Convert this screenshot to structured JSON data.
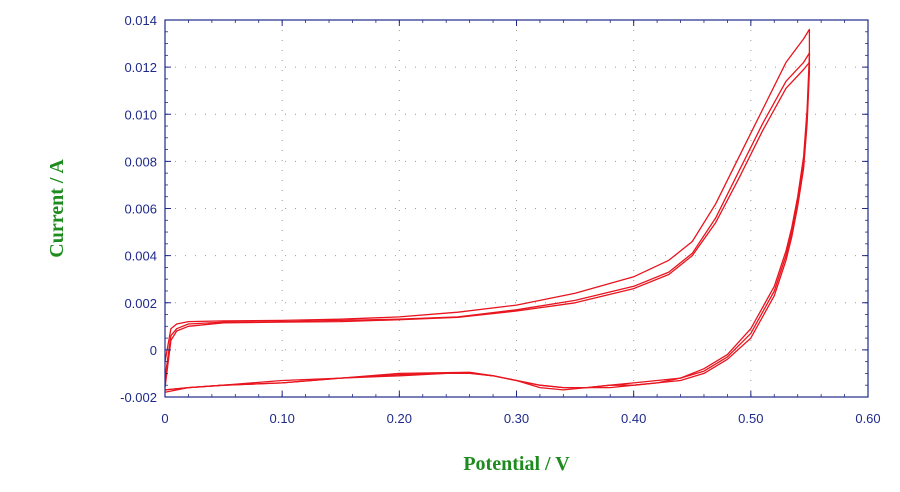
{
  "chart_data": {
    "type": "line",
    "title": "",
    "xlabel": "Potential / V",
    "ylabel": "Current / A",
    "xlim": [
      0,
      0.6
    ],
    "ylim": [
      -0.002,
      0.014
    ],
    "x_ticks": [
      0,
      0.1,
      0.2,
      0.3,
      0.4,
      0.5,
      0.6
    ],
    "x_tick_labels": [
      "0",
      "0.10",
      "0.20",
      "0.30",
      "0.40",
      "0.50",
      "0.60"
    ],
    "y_ticks": [
      -0.002,
      0,
      0.002,
      0.004,
      0.006,
      0.008,
      0.01,
      0.012,
      0.014
    ],
    "y_tick_labels": [
      "-0.002",
      "0",
      "0.002",
      "0.004",
      "0.006",
      "0.008",
      "0.010",
      "0.012",
      "0.014"
    ],
    "grid": true,
    "line_color": "#e8141e",
    "axis_color": "#1f2a8a",
    "grid_color": "#9a9a9a",
    "label_color": "#1e8b1e",
    "series": [
      {
        "x": [
          0.0,
          0.005,
          0.01,
          0.02,
          0.05,
          0.1,
          0.15,
          0.2,
          0.25,
          0.3,
          0.35,
          0.4,
          0.43,
          0.45,
          0.47,
          0.49,
          0.51,
          0.53,
          0.545,
          0.55,
          0.55,
          0.548,
          0.545,
          0.54,
          0.535,
          0.53,
          0.52,
          0.5,
          0.48,
          0.46,
          0.44,
          0.42,
          0.4,
          0.38,
          0.36,
          0.34,
          0.32,
          0.3,
          0.28,
          0.26,
          0.24,
          0.2,
          0.15,
          0.1,
          0.05,
          0.02,
          0.0
        ],
        "y": [
          -0.0005,
          0.0009,
          0.0011,
          0.0012,
          0.00123,
          0.00125,
          0.0013,
          0.0014,
          0.0016,
          0.0019,
          0.0024,
          0.0031,
          0.0038,
          0.0046,
          0.0062,
          0.0082,
          0.0102,
          0.0122,
          0.0132,
          0.0136,
          0.0125,
          0.0102,
          0.0082,
          0.0065,
          0.0052,
          0.0042,
          0.0027,
          0.0009,
          -0.0002,
          -0.0008,
          -0.0012,
          -0.0013,
          -0.0014,
          -0.0015,
          -0.0016,
          -0.0016,
          -0.0015,
          -0.0013,
          -0.0011,
          -0.00095,
          -0.00097,
          -0.001,
          -0.0012,
          -0.0013,
          -0.0015,
          -0.0016,
          -0.0017
        ]
      },
      {
        "x": [
          0.0,
          0.005,
          0.01,
          0.02,
          0.05,
          0.1,
          0.15,
          0.2,
          0.25,
          0.3,
          0.35,
          0.4,
          0.43,
          0.45,
          0.47,
          0.49,
          0.51,
          0.53,
          0.545,
          0.55,
          0.55,
          0.548,
          0.545,
          0.54,
          0.535,
          0.53,
          0.52,
          0.5,
          0.48,
          0.46,
          0.44,
          0.42,
          0.4,
          0.38,
          0.36,
          0.34,
          0.32,
          0.3,
          0.28,
          0.26,
          0.24,
          0.2,
          0.15,
          0.1,
          0.05,
          0.02,
          0.0
        ],
        "y": [
          -0.0012,
          0.0006,
          0.0009,
          0.0011,
          0.00118,
          0.0012,
          0.00125,
          0.0013,
          0.0014,
          0.0017,
          0.0021,
          0.0027,
          0.0033,
          0.0041,
          0.0056,
          0.0076,
          0.0096,
          0.0114,
          0.0122,
          0.0126,
          0.0121,
          0.0099,
          0.0079,
          0.0063,
          0.005,
          0.004,
          0.0025,
          0.0007,
          -0.0003,
          -0.0009,
          -0.0012,
          -0.0014,
          -0.0015,
          -0.0015,
          -0.0016,
          -0.0016,
          -0.0015,
          -0.0013,
          -0.0011,
          -0.00098,
          -0.001,
          -0.00105,
          -0.0012,
          -0.0014,
          -0.0015,
          -0.0016,
          -0.0017
        ]
      },
      {
        "x": [
          0.0,
          0.005,
          0.01,
          0.02,
          0.05,
          0.1,
          0.15,
          0.2,
          0.25,
          0.3,
          0.35,
          0.4,
          0.43,
          0.45,
          0.47,
          0.49,
          0.51,
          0.53,
          0.545,
          0.55,
          0.55,
          0.548,
          0.545,
          0.54,
          0.535,
          0.53,
          0.52,
          0.5,
          0.48,
          0.46,
          0.44,
          0.42,
          0.4,
          0.38,
          0.36,
          0.34,
          0.32,
          0.3,
          0.28,
          0.26,
          0.24,
          0.2,
          0.15,
          0.1,
          0.05,
          0.02,
          0.0
        ],
        "y": [
          -0.0016,
          0.0004,
          0.0008,
          0.001,
          0.00115,
          0.00118,
          0.0012,
          0.00128,
          0.00138,
          0.00165,
          0.002,
          0.0026,
          0.0032,
          0.004,
          0.0054,
          0.0073,
          0.0093,
          0.0111,
          0.0119,
          0.0122,
          0.0118,
          0.0096,
          0.0077,
          0.0061,
          0.0048,
          0.0038,
          0.0023,
          0.0005,
          -0.0004,
          -0.001,
          -0.0013,
          -0.0014,
          -0.0015,
          -0.0016,
          -0.0016,
          -0.0017,
          -0.0016,
          -0.0013,
          -0.0011,
          -0.001,
          -0.001,
          -0.0011,
          -0.0012,
          -0.0014,
          -0.0015,
          -0.0016,
          -0.0018
        ]
      }
    ]
  }
}
